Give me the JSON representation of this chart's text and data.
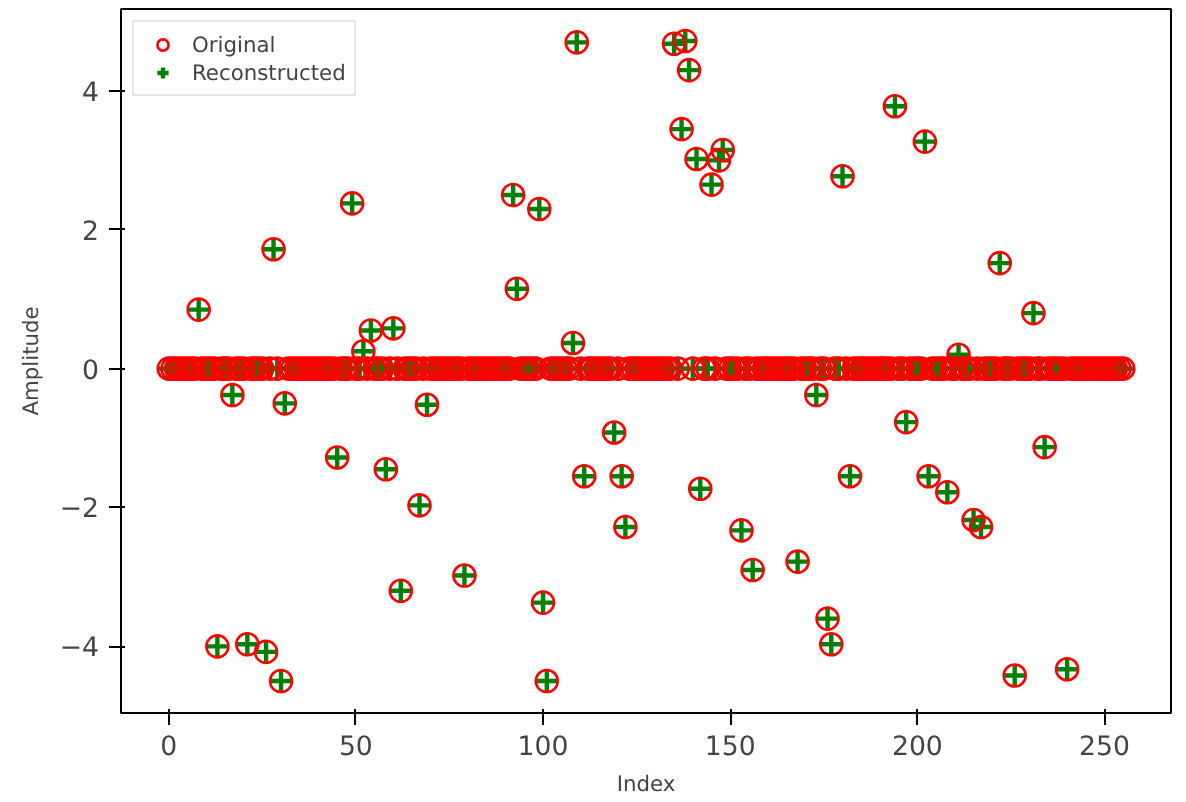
{
  "chart_data": {
    "type": "scatter",
    "xlabel": "Index",
    "ylabel": "Amplitude",
    "xlim": [
      -12.75,
      267.75
    ],
    "ylim": [
      -4.96,
      5.18
    ],
    "xticks": [
      0,
      50,
      100,
      150,
      200,
      250
    ],
    "yticks": [
      {
        "value": -4,
        "label": "−4"
      },
      {
        "value": -2,
        "label": "−2"
      },
      0,
      2,
      4
    ],
    "grid": false,
    "legend": "top left",
    "x": [
      0,
      1,
      2,
      3,
      4,
      5,
      6,
      7,
      8,
      9,
      10,
      11,
      12,
      13,
      14,
      15,
      16,
      17,
      18,
      19,
      20,
      21,
      22,
      23,
      24,
      25,
      26,
      27,
      28,
      29,
      30,
      31,
      32,
      33,
      34,
      35,
      36,
      37,
      38,
      39,
      40,
      41,
      42,
      43,
      44,
      45,
      46,
      47,
      48,
      49,
      50,
      51,
      52,
      53,
      54,
      55,
      56,
      57,
      58,
      59,
      60,
      61,
      62,
      63,
      64,
      65,
      66,
      67,
      68,
      69,
      70,
      71,
      72,
      73,
      74,
      75,
      76,
      77,
      78,
      79,
      80,
      81,
      82,
      83,
      84,
      85,
      86,
      87,
      88,
      89,
      90,
      91,
      92,
      93,
      94,
      95,
      96,
      97,
      98,
      99,
      100,
      101,
      102,
      103,
      104,
      105,
      106,
      107,
      108,
      109,
      110,
      111,
      112,
      113,
      114,
      115,
      116,
      117,
      118,
      119,
      120,
      121,
      122,
      123,
      124,
      125,
      126,
      127,
      128,
      129,
      130,
      131,
      132,
      133,
      134,
      135,
      136,
      137,
      138,
      139,
      140,
      141,
      142,
      143,
      144,
      145,
      146,
      147,
      148,
      149,
      150,
      151,
      152,
      153,
      154,
      155,
      156,
      157,
      158,
      159,
      160,
      161,
      162,
      163,
      164,
      165,
      166,
      167,
      168,
      169,
      170,
      171,
      172,
      173,
      174,
      175,
      176,
      177,
      178,
      179,
      180,
      181,
      182,
      183,
      184,
      185,
      186,
      187,
      188,
      189,
      190,
      191,
      192,
      193,
      194,
      195,
      196,
      197,
      198,
      199,
      200,
      201,
      202,
      203,
      204,
      205,
      206,
      207,
      208,
      209,
      210,
      211,
      212,
      213,
      214,
      215,
      216,
      217,
      218,
      219,
      220,
      221,
      222,
      223,
      224,
      225,
      226,
      227,
      228,
      229,
      230,
      231,
      232,
      233,
      234,
      235,
      236,
      237,
      238,
      239,
      240,
      241,
      242,
      243,
      244,
      245,
      246,
      247,
      248,
      249,
      250,
      251,
      252,
      253,
      254,
      255
    ],
    "series": [
      {
        "name": "Original",
        "color": "#ff0000",
        "marker": "circle",
        "values": [
          0,
          0,
          0,
          0,
          0,
          0,
          0,
          0,
          0.85,
          0,
          0,
          0,
          0,
          -4.0,
          0,
          0,
          0,
          -0.38,
          0,
          0,
          0,
          -3.97,
          0,
          0,
          0,
          0,
          -4.08,
          0,
          1.72,
          0,
          -4.5,
          -0.5,
          0,
          0,
          0,
          0,
          0,
          0,
          0,
          0,
          0,
          0,
          0,
          0,
          0,
          -1.28,
          0,
          0,
          0,
          2.38,
          0,
          0,
          0.25,
          0,
          0.55,
          0,
          0,
          0,
          -1.45,
          0,
          0.58,
          0,
          -3.2,
          0,
          0,
          0,
          0,
          -1.97,
          0,
          -0.52,
          0,
          0,
          0,
          0,
          0,
          0,
          0,
          0,
          0,
          -2.98,
          0,
          0,
          0,
          0,
          0,
          0,
          0,
          0,
          0,
          0,
          0,
          0,
          2.5,
          1.15,
          0,
          0,
          0,
          0,
          0,
          2.3,
          -3.37,
          -4.5,
          0,
          0,
          0,
          0,
          0,
          0,
          0.37,
          4.7,
          0,
          -1.55,
          0,
          0,
          0,
          0,
          0,
          0,
          0,
          -0.92,
          0,
          -1.55,
          -2.28,
          0,
          0,
          0,
          0,
          0,
          0,
          0,
          0,
          0,
          0,
          0,
          0,
          4.68,
          0,
          3.45,
          4.72,
          4.3,
          0,
          3.02,
          -1.73,
          0,
          0,
          2.65,
          0,
          3.0,
          3.15,
          0,
          0,
          0,
          0,
          -2.33,
          0,
          0,
          -2.9,
          0,
          0,
          0,
          0,
          0,
          0,
          0,
          0,
          0,
          0,
          0,
          -2.78,
          0,
          0,
          0,
          0,
          -0.38,
          0,
          0,
          -3.6,
          -3.97,
          0,
          0,
          2.77,
          0,
          -1.55,
          0,
          0,
          0,
          0,
          0,
          0,
          0,
          0,
          0,
          0,
          0,
          3.78,
          0,
          0,
          -0.77,
          0,
          0,
          0,
          0,
          3.27,
          -1.55,
          0,
          0,
          0,
          0,
          -1.78,
          0,
          0,
          0.2,
          0,
          0,
          0,
          -2.18,
          0,
          -2.28,
          0,
          0,
          0,
          0,
          1.52,
          0,
          0,
          0,
          -4.42,
          0,
          0,
          0,
          0,
          0.8,
          0,
          0,
          -1.13,
          0,
          0,
          0,
          0,
          0,
          -4.33,
          0,
          0,
          0,
          0,
          0,
          0,
          0,
          0,
          0,
          0,
          0,
          0,
          0,
          0,
          0
        ]
      },
      {
        "name": "Reconstructed",
        "color": "#008000",
        "marker": "cross",
        "values": [
          0,
          0,
          0,
          0,
          0,
          0,
          0,
          0,
          0.85,
          0,
          0,
          0,
          0,
          -4.0,
          0,
          0,
          0,
          -0.38,
          0,
          0,
          0,
          -3.97,
          0,
          0,
          0,
          0,
          -4.08,
          0,
          1.72,
          0,
          -4.5,
          -0.5,
          0,
          0,
          0,
          0,
          0,
          0,
          0,
          0,
          0,
          0,
          0,
          0,
          0,
          -1.28,
          0,
          0,
          0,
          2.38,
          0,
          0,
          0.25,
          0,
          0.55,
          0,
          0,
          0,
          -1.45,
          0,
          0.58,
          0,
          -3.2,
          0,
          0,
          0,
          0,
          -1.97,
          0,
          -0.52,
          0,
          0,
          0,
          0,
          0,
          0,
          0,
          0,
          0,
          -2.98,
          0,
          0,
          0,
          0,
          0,
          0,
          0,
          0,
          0,
          0,
          0,
          0,
          2.5,
          1.15,
          0,
          0,
          0,
          0,
          0,
          2.3,
          -3.37,
          -4.5,
          0,
          0,
          0,
          0,
          0,
          0,
          0.37,
          4.7,
          0,
          -1.55,
          0,
          0,
          0,
          0,
          0,
          0,
          0,
          -0.92,
          0,
          -1.55,
          -2.28,
          0,
          0,
          0,
          0,
          0,
          0,
          0,
          0,
          0,
          0,
          0,
          0,
          4.68,
          0,
          3.45,
          4.72,
          4.3,
          0,
          3.02,
          -1.73,
          0,
          0,
          2.65,
          0,
          3.0,
          3.15,
          0,
          0,
          0,
          0,
          -2.33,
          0,
          0,
          -2.9,
          0,
          0,
          0,
          0,
          0,
          0,
          0,
          0,
          0,
          0,
          0,
          -2.78,
          0,
          0,
          0,
          0,
          -0.38,
          0,
          0,
          -3.6,
          -3.97,
          0,
          0,
          2.77,
          0,
          -1.55,
          0,
          0,
          0,
          0,
          0,
          0,
          0,
          0,
          0,
          0,
          0,
          3.78,
          0,
          0,
          -0.77,
          0,
          0,
          0,
          0,
          3.27,
          -1.55,
          0,
          0,
          0,
          0,
          -1.78,
          0,
          0,
          0.2,
          0,
          0,
          0,
          -2.18,
          0,
          -2.28,
          0,
          0,
          0,
          0,
          1.52,
          0,
          0,
          0,
          -4.42,
          0,
          0,
          0,
          0,
          0.8,
          0,
          0,
          -1.13,
          0,
          0,
          0,
          0,
          0,
          -4.33,
          0,
          0,
          0,
          0,
          0,
          0,
          0,
          0,
          0,
          0,
          0,
          0,
          0,
          0,
          0
        ]
      }
    ]
  }
}
